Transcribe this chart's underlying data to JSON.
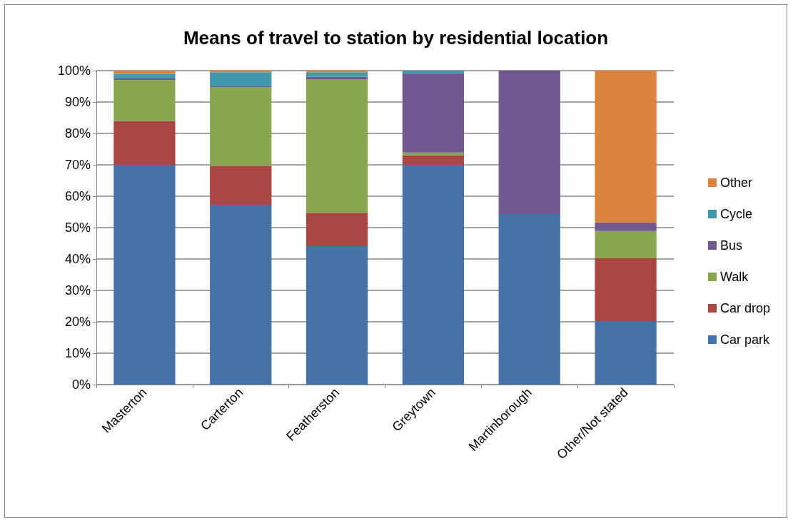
{
  "chart_data": {
    "type": "bar",
    "title": "Means of travel to station by residential location",
    "categories": [
      "Masterton",
      "Carterton",
      "Featherston",
      "Greytown",
      "Martinborough",
      "Other/Not stated"
    ],
    "stacked": true,
    "ylim": [
      0,
      100
    ],
    "yticks": [
      {
        "value": 0,
        "label": "0%"
      },
      {
        "value": 10,
        "label": "10%"
      },
      {
        "value": 20,
        "label": "20%"
      },
      {
        "value": 30,
        "label": "30%"
      },
      {
        "value": 40,
        "label": "40%"
      },
      {
        "value": 50,
        "label": "50%"
      },
      {
        "value": 60,
        "label": "60%"
      },
      {
        "value": 70,
        "label": "70%"
      },
      {
        "value": 80,
        "label": "80%"
      },
      {
        "value": 90,
        "label": "90%"
      },
      {
        "value": 100,
        "label": "100%"
      }
    ],
    "grid": "y",
    "legend": "right",
    "series": [
      {
        "name": "Car park",
        "color": "#4572a7",
        "values": [
          70,
          57.3,
          44.1,
          70,
          54.3,
          20.2
        ]
      },
      {
        "name": "Car drop",
        "color": "#aa4643",
        "values": [
          14,
          12.4,
          10.6,
          3,
          0,
          20
        ]
      },
      {
        "name": "Walk",
        "color": "#89a54e",
        "values": [
          13,
          25,
          42.6,
          0.9,
          0,
          8.7
        ]
      },
      {
        "name": "Bus",
        "color": "#71588f",
        "values": [
          0.5,
          0.3,
          0.7,
          25.3,
          45.7,
          2.8
        ]
      },
      {
        "name": "Cycle",
        "color": "#4198af",
        "values": [
          1.5,
          4.5,
          1.5,
          0.8,
          0,
          0
        ]
      },
      {
        "name": "Other",
        "color": "#db843d",
        "values": [
          1,
          0.5,
          0.5,
          0,
          0,
          48.3
        ]
      }
    ]
  }
}
